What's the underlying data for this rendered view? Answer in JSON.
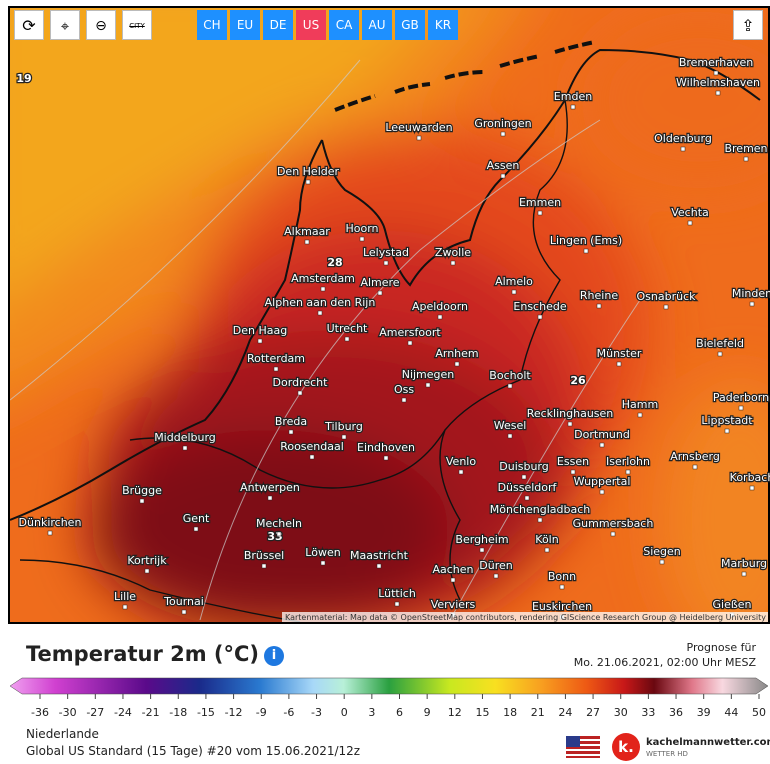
{
  "toolbar": {
    "city_button": "CITY",
    "regions": [
      "CH",
      "EU",
      "DE",
      "US",
      "CA",
      "AU",
      "GB",
      "KR"
    ],
    "active": "US"
  },
  "map": {
    "isotherm_labels": [
      19,
      28,
      26,
      33
    ],
    "cities": [
      "Bremerhaven",
      "Wilhelmshaven",
      "Emden",
      "Leeuwarden",
      "Groningen",
      "Oldenburg",
      "Bremen",
      "Den Helder",
      "Assen",
      "Emmen",
      "Vechta",
      "Alkmaar",
      "Hoorn",
      "Lelystad",
      "Zwolle",
      "Lingen (Ems)",
      "Amsterdam",
      "Almere",
      "Almelo",
      "Rheine",
      "Osnabrück",
      "Minden",
      "Alphen aan den Rijn",
      "Utrecht",
      "Apeldoorn",
      "Enschede",
      "Den Haag",
      "Amersfoort",
      "Bielefeld",
      "Rotterdam",
      "Arnhem",
      "Münster",
      "Dordrecht",
      "Nijmegen",
      "Bocholt",
      "Oss",
      "Paderborn",
      "Hamm",
      "Recklinghausen",
      "Breda",
      "Tilburg",
      "Wesel",
      "Lippstadt",
      "Middelburg",
      "Dortmund",
      "Roosendaal",
      "Eindhoven",
      "Venlo",
      "Duisburg",
      "Essen",
      "Iserlohn",
      "Arnsberg",
      "Wuppertal",
      "Brügge",
      "Antwerpen",
      "Düsseldorf",
      "Korbach",
      "Mönchengladbach",
      "Gent",
      "Mecheln",
      "Gummersbach",
      "Dünkirchen",
      "Brüssel",
      "Löwen",
      "Bergheim",
      "Köln",
      "Kortrijk",
      "Maastricht",
      "Siegen",
      "Düren",
      "Aachen",
      "Marburg",
      "Bonn",
      "Lille",
      "Tournai",
      "Lüttich",
      "Verviers",
      "Euskirchen",
      "Gießen"
    ],
    "attribution": "Kartenmaterial: Map data © OpenStreetMap contributors, rendering GIScience Research Group @ Heidelberg University"
  },
  "legend": {
    "title": "Temperatur 2m (°C)",
    "forecast_label": "Prognose für",
    "forecast_time": "Mo. 21.06.2021, 02:00 Uhr MESZ",
    "ticks": [
      -36,
      -30,
      -27,
      -24,
      -21,
      -18,
      -15,
      -12,
      -9,
      -6,
      -3,
      0,
      3,
      6,
      9,
      12,
      15,
      18,
      21,
      24,
      27,
      30,
      33,
      36,
      39,
      44,
      50
    ],
    "region": "Niederlande",
    "model": "Global US Standard (15 Tage) #20 vom 15.06.2021/12z",
    "brand": "kachelmannwetter.com",
    "brand_sub": "WETTER HD"
  }
}
